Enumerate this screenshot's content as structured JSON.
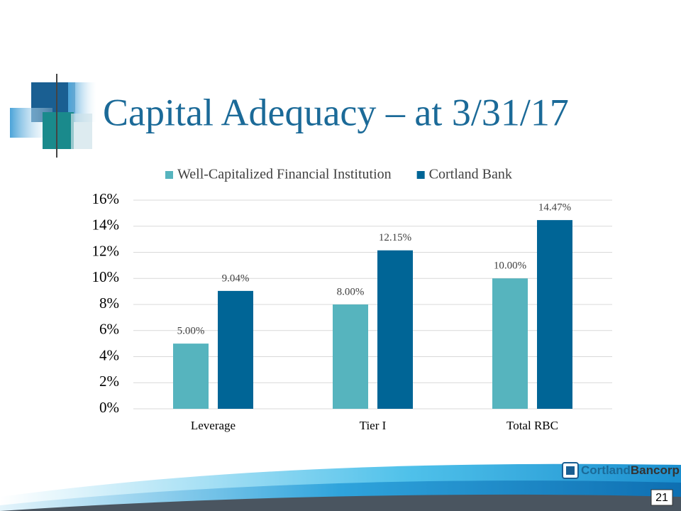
{
  "title": "Capital Adequacy – at 3/31/17",
  "chart_data": {
    "type": "bar",
    "categories": [
      "Leverage",
      "Tier I",
      "Total RBC"
    ],
    "series": [
      {
        "name": "Well-Capitalized Financial Institution",
        "color": "#56b4be",
        "values": [
          5,
          8,
          10
        ],
        "value_labels": [
          "5.00%",
          "8.00%",
          "10.00%"
        ]
      },
      {
        "name": "Cortland Bank",
        "color": "#006596",
        "values": [
          9.04,
          12.15,
          14.47
        ],
        "value_labels": [
          "9.04%",
          "12.15%",
          "14.47%"
        ]
      }
    ],
    "ylim": [
      0,
      16
    ],
    "yticks": [
      {
        "value": 0,
        "label": "0%"
      },
      {
        "value": 2,
        "label": "2%"
      },
      {
        "value": 4,
        "label": "4%"
      },
      {
        "value": 6,
        "label": "6%"
      },
      {
        "value": 8,
        "label": "8%"
      },
      {
        "value": 10,
        "label": "10%"
      },
      {
        "value": 12,
        "label": "12%"
      },
      {
        "value": 14,
        "label": "14%"
      },
      {
        "value": 16,
        "label": "16%"
      }
    ],
    "grid": true,
    "legend": "top"
  },
  "logo": {
    "part1": "Cortland",
    "part2": "Bancorp"
  },
  "page_number": "21"
}
